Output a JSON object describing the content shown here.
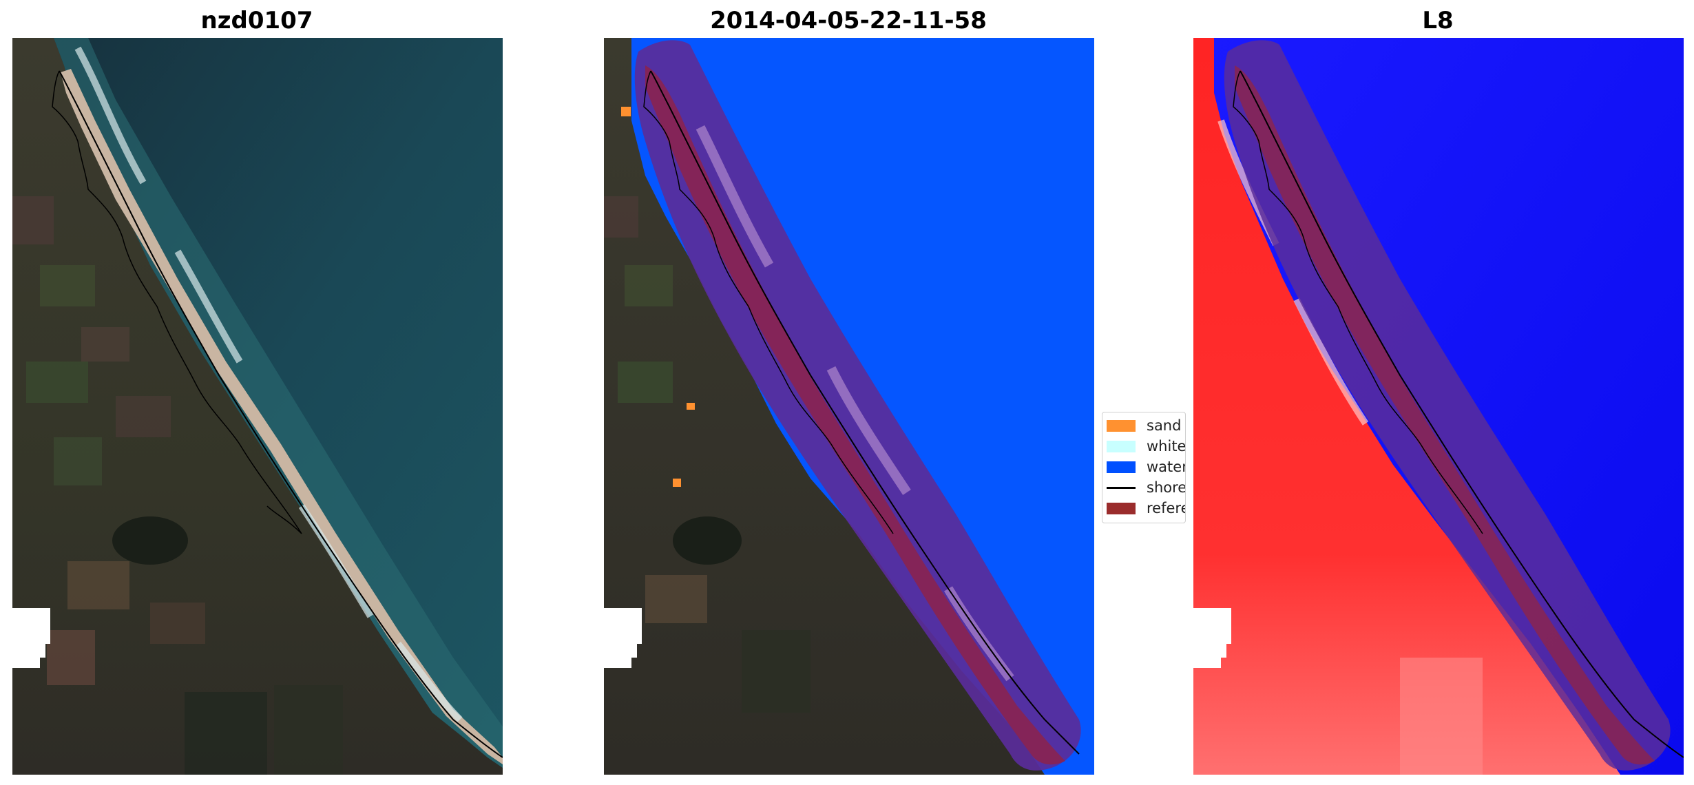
{
  "panels": [
    {
      "title": "nzd0107",
      "image": "rgb-satellite-image"
    },
    {
      "title": "2014-04-05-22-11-58",
      "image": "classified-image"
    },
    {
      "title": "L8",
      "image": "mndwi-image"
    }
  ],
  "legend": {
    "items": [
      {
        "label": "sand",
        "color": "#ff9130",
        "kind": "patch"
      },
      {
        "label": "whitewater",
        "color": "#c8ffff",
        "kind": "patch"
      },
      {
        "label": "water",
        "color": "#0050ff",
        "kind": "patch"
      },
      {
        "label": "shoreline",
        "color": "#000000",
        "kind": "line"
      },
      {
        "label": "reference shoreline",
        "color": "#9a2c2c",
        "kind": "patch"
      }
    ]
  },
  "colors": {
    "land_dark": "#3a3a2c",
    "ocean": "#1b4a56",
    "water_class": "#0050ff",
    "buffer_purple": "#5a2d9a",
    "reference_band": "#8a2450",
    "mndwi_land": "#ff2020",
    "mndwi_water": "#1414ff"
  }
}
